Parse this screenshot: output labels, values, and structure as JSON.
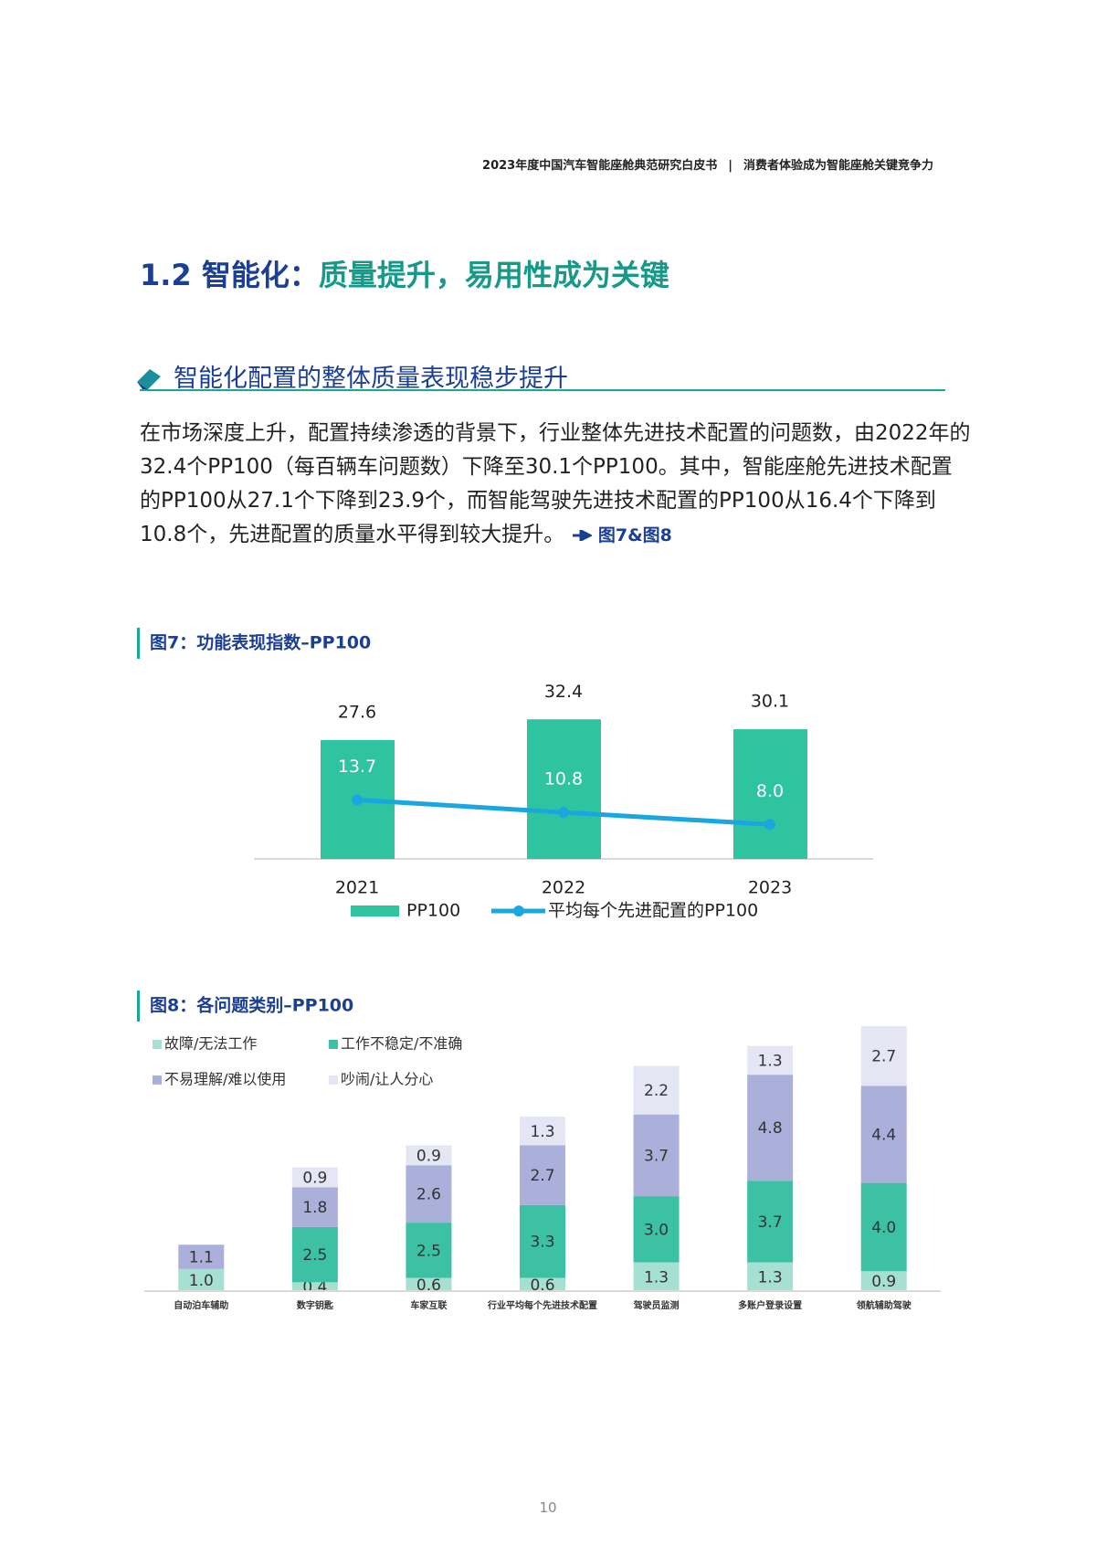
{
  "header": {
    "report": "2023年度中国汽车智能座舱典范研究白皮书",
    "separator": "|",
    "topic": "消费者体验成为智能座舱关键竞争力"
  },
  "title": [
    "1.2 智能化：",
    "质量提升，易用性成为关键"
  ],
  "section_heading": "智能化配置的整体质量表现稳步提升",
  "paragraph": {
    "text": "在市场深度上升，配置持续渗透的背景下，行业整体先进技术配置的问题数，由2022年的32.4个PP100（每百辆车问题数）下降至30.1个PP100。其中，智能座舱先进技术配置的PP100从27.1个下降到23.9个，而智能驾驶先进技术配置的PP100从16.4个下降到10.8个，先进配置的质量水平得到较大提升。",
    "ref": "图7&图8"
  },
  "chart_data": [
    {
      "type": "bar",
      "title": "图7：功能表现指数–PP100",
      "categories": [
        "2021",
        "2022",
        "2023"
      ],
      "series": [
        {
          "name": "PP100",
          "type": "bar",
          "color": "#2ec4a0",
          "values": [
            27.6,
            32.4,
            30.1
          ]
        },
        {
          "name": "平均每个先进配置的PP100",
          "type": "line",
          "color": "#1aa7e0",
          "values": [
            13.7,
            10.8,
            8.0
          ],
          "value_labels": [
            "13.7",
            "10.8",
            "8.0"
          ]
        }
      ],
      "ylim": [
        0,
        35
      ]
    },
    {
      "type": "stacked_bar",
      "title": "图8：各问题类别–PP100",
      "categories": [
        "自动泊车辅助",
        "数字钥匙",
        "车家互联",
        "行业平均每个先进技术配置",
        "驾驶员监测",
        "多账户登录设置",
        "领航辅助驾驶"
      ],
      "series": [
        {
          "name": "故障/无法工作",
          "color": "#a6e0d2",
          "values": [
            1.0,
            0.4,
            0.6,
            0.6,
            1.3,
            1.3,
            0.9
          ],
          "value_labels": [
            "1.0",
            "0.4",
            "0.6",
            "0.6",
            "1.3",
            "1.3",
            "0.9"
          ]
        },
        {
          "name": "工作不稳定/不准确",
          "color": "#3cc1a4",
          "values": [
            null,
            2.5,
            2.5,
            3.3,
            3.0,
            3.7,
            4.0
          ],
          "value_labels": [
            null,
            "2.5",
            "2.5",
            "3.3",
            "3.0",
            "3.7",
            "4.0"
          ]
        },
        {
          "name": "不易理解/难以使用",
          "color": "#aab0da",
          "values": [
            1.1,
            1.8,
            2.6,
            2.7,
            3.7,
            4.8,
            4.4
          ]
        },
        {
          "name": "吵闹/让人分心",
          "color": "#e4e6f3",
          "values": [
            null,
            0.9,
            0.9,
            1.3,
            2.2,
            1.3,
            2.7
          ]
        }
      ],
      "ylim": [
        0,
        12
      ]
    }
  ],
  "page_number": "10"
}
